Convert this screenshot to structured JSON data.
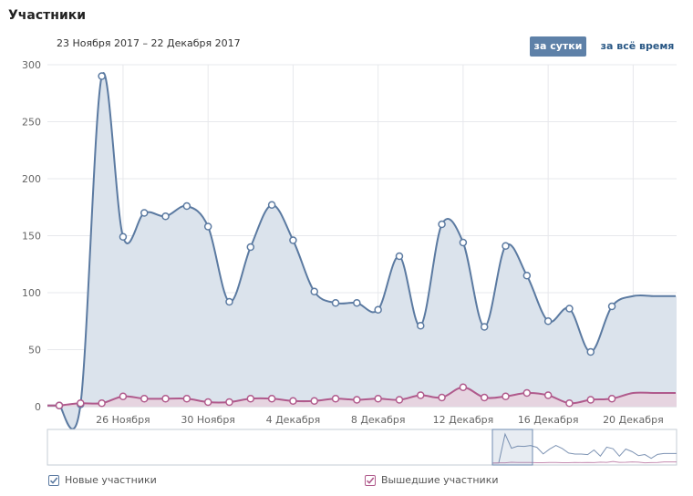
{
  "header": {
    "title": "Участники",
    "date_range": "23 Ноября 2017 – 22 Декабря 2017",
    "tab_daily": "за сутки",
    "tab_all_time": "за всё время"
  },
  "colors": {
    "new": "#5b7aa1",
    "new_fill": "#dbe3ec",
    "left": "#b05a8c",
    "left_fill": "#e6d4e0",
    "grid": "#e7e8ec",
    "axis_text": "#656565"
  },
  "legend": {
    "new_label": "Новые участники",
    "left_label": "Вышедшие участники"
  },
  "chart_data": {
    "type": "area",
    "x": [
      "23.11",
      "24.11",
      "25.11",
      "26.11",
      "27.11",
      "28.11",
      "29.11",
      "30.11",
      "01.12",
      "02.12",
      "03.12",
      "04.12",
      "05.12",
      "06.12",
      "07.12",
      "08.12",
      "09.12",
      "10.12",
      "11.12",
      "12.12",
      "13.12",
      "14.12",
      "15.12",
      "16.12",
      "17.12",
      "18.12",
      "19.12",
      "20.12",
      "21.12",
      "22.12"
    ],
    "series": [
      {
        "name": "Новые участники",
        "values": [
          1,
          2,
          290,
          149,
          170,
          167,
          176,
          158,
          92,
          140,
          177,
          146,
          101,
          91,
          91,
          85,
          132,
          71,
          160,
          144,
          70,
          141,
          115,
          75,
          86,
          48,
          88,
          97,
          97,
          97
        ]
      },
      {
        "name": "Вышедшие участники",
        "values": [
          1,
          3,
          3,
          9,
          7,
          7,
          7,
          4,
          4,
          7,
          7,
          5,
          5,
          7,
          6,
          7,
          6,
          10,
          8,
          17,
          8,
          9,
          12,
          10,
          3,
          6,
          7,
          12,
          12,
          12
        ]
      }
    ],
    "y_ticks": [
      "300",
      "250",
      "200",
      "150",
      "100",
      "50",
      "0"
    ],
    "ylim": [
      0,
      300
    ],
    "x_tick_labels": [
      "26 Ноября",
      "30 Ноября",
      "4 Декабря",
      "8 Декабря",
      "12 Декабря",
      "16 Декабря",
      "20 Декабря"
    ],
    "grid": true
  }
}
